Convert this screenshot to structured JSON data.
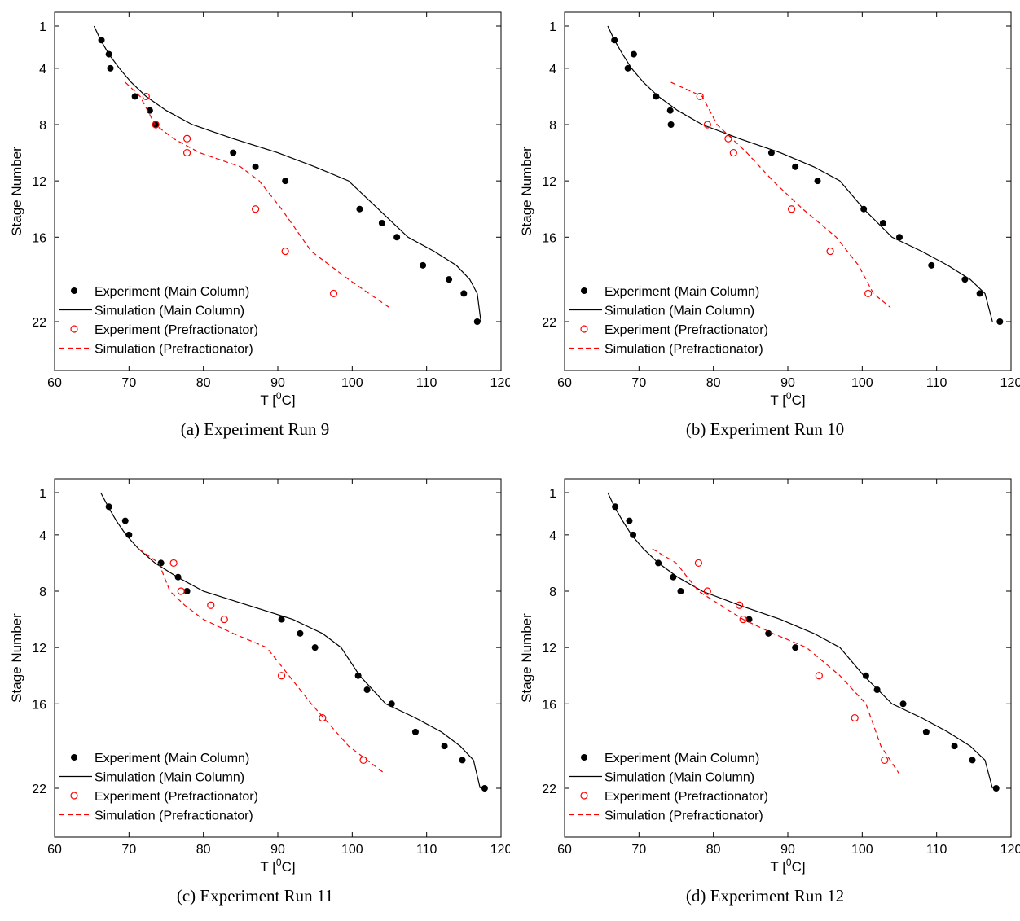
{
  "colors": {
    "main": "#000000",
    "pref": "#ff0000"
  },
  "chart_data": [
    {
      "type": "scatter",
      "caption": "(a) Experiment Run 9",
      "xlabel": "T [0C]",
      "ylabel": "Stage Number",
      "xlim": [
        60,
        120
      ],
      "ylim": [
        1,
        25
      ],
      "y_reversed": true,
      "xticks": [
        60,
        70,
        80,
        90,
        100,
        110,
        120
      ],
      "yticks": [
        1,
        4,
        8,
        12,
        16,
        22
      ],
      "legend_position": "bottom-left",
      "series": [
        {
          "name": "Experiment (Main Column)",
          "style": "filled-dot",
          "x": [
            66.3,
            67.3,
            67.5,
            70.8,
            72.8,
            73.6,
            84.0,
            87.0,
            91.0,
            101.0,
            104.0,
            106.0,
            109.5,
            113.0,
            115.0,
            116.8
          ],
          "y": [
            2,
            3,
            4,
            6,
            7,
            8,
            10,
            11,
            12,
            14,
            15,
            16,
            18,
            19,
            20,
            22
          ]
        },
        {
          "name": "Simulation (Main Column)",
          "style": "solid-line",
          "x": [
            65.3,
            66.2,
            67.3,
            68.7,
            70.3,
            72.3,
            75.0,
            78.5,
            84.0,
            90.0,
            95.0,
            99.5,
            103.5,
            107.5,
            111.0,
            114.0,
            115.8,
            116.8,
            117.3
          ],
          "y": [
            1,
            2,
            3,
            4,
            5,
            6,
            7,
            8,
            9,
            10,
            11,
            12,
            14,
            16,
            17,
            18,
            19,
            20,
            22
          ]
        },
        {
          "name": "Experiment (Prefractionator)",
          "style": "open-circle",
          "x": [
            72.3,
            73.6,
            77.8,
            77.8,
            87.0,
            91.0,
            97.5
          ],
          "y": [
            6,
            8,
            9,
            10,
            14,
            17,
            20
          ]
        },
        {
          "name": "Simulation (Prefractionator)",
          "style": "dashed-line",
          "x": [
            69.5,
            71.5,
            73.5,
            76.0,
            79.5,
            85.0,
            87.5,
            90.5,
            94.5,
            99.5,
            105.0
          ],
          "y": [
            5,
            6,
            8,
            9,
            10,
            11,
            12,
            14,
            17,
            19,
            21
          ]
        }
      ]
    },
    {
      "type": "scatter",
      "caption": "(b) Experiment Run 10",
      "xlabel": "T [0C]",
      "ylabel": "Stage Number",
      "xlim": [
        60,
        120
      ],
      "ylim": [
        1,
        25
      ],
      "y_reversed": true,
      "xticks": [
        60,
        70,
        80,
        90,
        100,
        110,
        120
      ],
      "yticks": [
        1,
        4,
        8,
        12,
        16,
        22
      ],
      "legend_position": "bottom-left",
      "series": [
        {
          "name": "Experiment (Main Column)",
          "style": "filled-dot",
          "x": [
            66.7,
            69.3,
            68.5,
            72.3,
            74.2,
            74.3,
            87.8,
            91.0,
            94.0,
            100.2,
            102.8,
            105.0,
            109.3,
            113.8,
            115.8,
            118.5
          ],
          "y": [
            2,
            3,
            4,
            6,
            7,
            8,
            10,
            11,
            12,
            14,
            15,
            16,
            18,
            19,
            20,
            22
          ]
        },
        {
          "name": "Simulation (Main Column)",
          "style": "solid-line",
          "x": [
            65.8,
            66.7,
            67.8,
            69.0,
            70.6,
            72.6,
            75.2,
            78.5,
            83.5,
            89.0,
            93.5,
            97.0,
            100.2,
            104.0,
            108.0,
            111.5,
            114.5,
            116.5,
            117.5
          ],
          "y": [
            1,
            2,
            3,
            4,
            5,
            6,
            7,
            8,
            9,
            10,
            11,
            12,
            14,
            16,
            17,
            18,
            19,
            20,
            22
          ]
        },
        {
          "name": "Experiment (Prefractionator)",
          "style": "open-circle",
          "x": [
            78.2,
            79.2,
            82.0,
            82.7,
            90.5,
            95.7,
            100.8
          ],
          "y": [
            6,
            8,
            9,
            10,
            14,
            17,
            20
          ]
        },
        {
          "name": "Simulation (Prefractionator)",
          "style": "dashed-line",
          "x": [
            74.3,
            78.5,
            80.5,
            82.5,
            84.5,
            88.0,
            92.0,
            96.5,
            99.5,
            101.5,
            103.8
          ],
          "y": [
            5,
            6,
            8,
            9,
            10,
            12,
            14,
            16,
            18,
            20,
            21
          ]
        }
      ]
    },
    {
      "type": "scatter",
      "caption": "(c) Experiment Run 11",
      "xlabel": "T [0C]",
      "ylabel": "Stage Number",
      "xlim": [
        60,
        120
      ],
      "ylim": [
        1,
        25
      ],
      "y_reversed": true,
      "xticks": [
        60,
        70,
        80,
        90,
        100,
        110,
        120
      ],
      "yticks": [
        1,
        4,
        8,
        12,
        16,
        22
      ],
      "legend_position": "bottom-left",
      "series": [
        {
          "name": "Experiment (Main Column)",
          "style": "filled-dot",
          "x": [
            67.3,
            69.5,
            70.0,
            74.3,
            76.6,
            77.8,
            90.5,
            93.0,
            95.0,
            100.8,
            102.0,
            105.3,
            108.5,
            112.4,
            114.8,
            117.8
          ],
          "y": [
            2,
            3,
            4,
            6,
            7,
            8,
            10,
            11,
            12,
            14,
            15,
            16,
            18,
            19,
            20,
            22
          ]
        },
        {
          "name": "Simulation (Main Column)",
          "style": "solid-line",
          "x": [
            66.2,
            67.2,
            68.3,
            69.6,
            71.3,
            73.5,
            76.5,
            80.0,
            86.0,
            92.0,
            96.0,
            98.5,
            101.0,
            104.5,
            108.5,
            112.0,
            114.5,
            116.3,
            117.2
          ],
          "y": [
            1,
            2,
            3,
            4,
            5,
            6,
            7,
            8,
            9,
            10,
            11,
            12,
            14,
            16,
            17,
            18,
            19,
            20,
            22
          ]
        },
        {
          "name": "Experiment (Prefractionator)",
          "style": "open-circle",
          "x": [
            76.0,
            77.0,
            81.0,
            82.8,
            90.5,
            96.0,
            101.5
          ],
          "y": [
            6,
            8,
            9,
            10,
            14,
            17,
            20
          ]
        },
        {
          "name": "Simulation (Prefractionator)",
          "style": "dashed-line",
          "x": [
            71.3,
            74.0,
            75.5,
            77.5,
            80.0,
            84.0,
            88.5,
            91.5,
            94.5,
            99.5,
            104.5
          ],
          "y": [
            5,
            6,
            8,
            9,
            10,
            11,
            12,
            14,
            16,
            19,
            21
          ]
        }
      ]
    },
    {
      "type": "scatter",
      "caption": "(d) Experiment Run 12",
      "xlabel": "T [0C]",
      "ylabel": "Stage Number",
      "xlim": [
        60,
        120
      ],
      "ylim": [
        1,
        25
      ],
      "y_reversed": true,
      "xticks": [
        60,
        70,
        80,
        90,
        100,
        110,
        120
      ],
      "yticks": [
        1,
        4,
        8,
        12,
        16,
        22
      ],
      "legend_position": "bottom-left",
      "series": [
        {
          "name": "Experiment (Main Column)",
          "style": "filled-dot",
          "x": [
            66.8,
            68.7,
            69.2,
            72.6,
            74.6,
            75.6,
            84.8,
            87.4,
            91.0,
            100.5,
            102.0,
            105.5,
            108.6,
            112.4,
            114.8,
            118.0
          ],
          "y": [
            2,
            3,
            4,
            6,
            7,
            8,
            10,
            11,
            12,
            14,
            15,
            16,
            18,
            19,
            20,
            22
          ]
        },
        {
          "name": "Simulation (Main Column)",
          "style": "solid-line",
          "x": [
            65.8,
            66.7,
            67.8,
            69.0,
            70.6,
            72.6,
            75.2,
            78.5,
            83.5,
            89.0,
            93.5,
            97.0,
            100.2,
            104.0,
            108.0,
            111.5,
            114.5,
            116.5,
            117.5
          ],
          "y": [
            1,
            2,
            3,
            4,
            5,
            6,
            7,
            8,
            9,
            10,
            11,
            12,
            14,
            16,
            17,
            18,
            19,
            20,
            22
          ]
        },
        {
          "name": "Experiment (Prefractionator)",
          "style": "open-circle",
          "x": [
            78.0,
            79.2,
            83.5,
            84.0,
            94.2,
            99.0,
            103.0
          ],
          "y": [
            6,
            8,
            9,
            10,
            14,
            17,
            20
          ]
        },
        {
          "name": "Simulation (Prefractionator)",
          "style": "dashed-line",
          "x": [
            71.8,
            75.0,
            78.0,
            81.0,
            84.0,
            88.0,
            92.5,
            97.0,
            100.5,
            102.5,
            105.0
          ],
          "y": [
            5,
            6,
            8,
            9,
            10,
            11,
            12,
            14,
            16,
            19,
            21
          ]
        }
      ]
    }
  ]
}
